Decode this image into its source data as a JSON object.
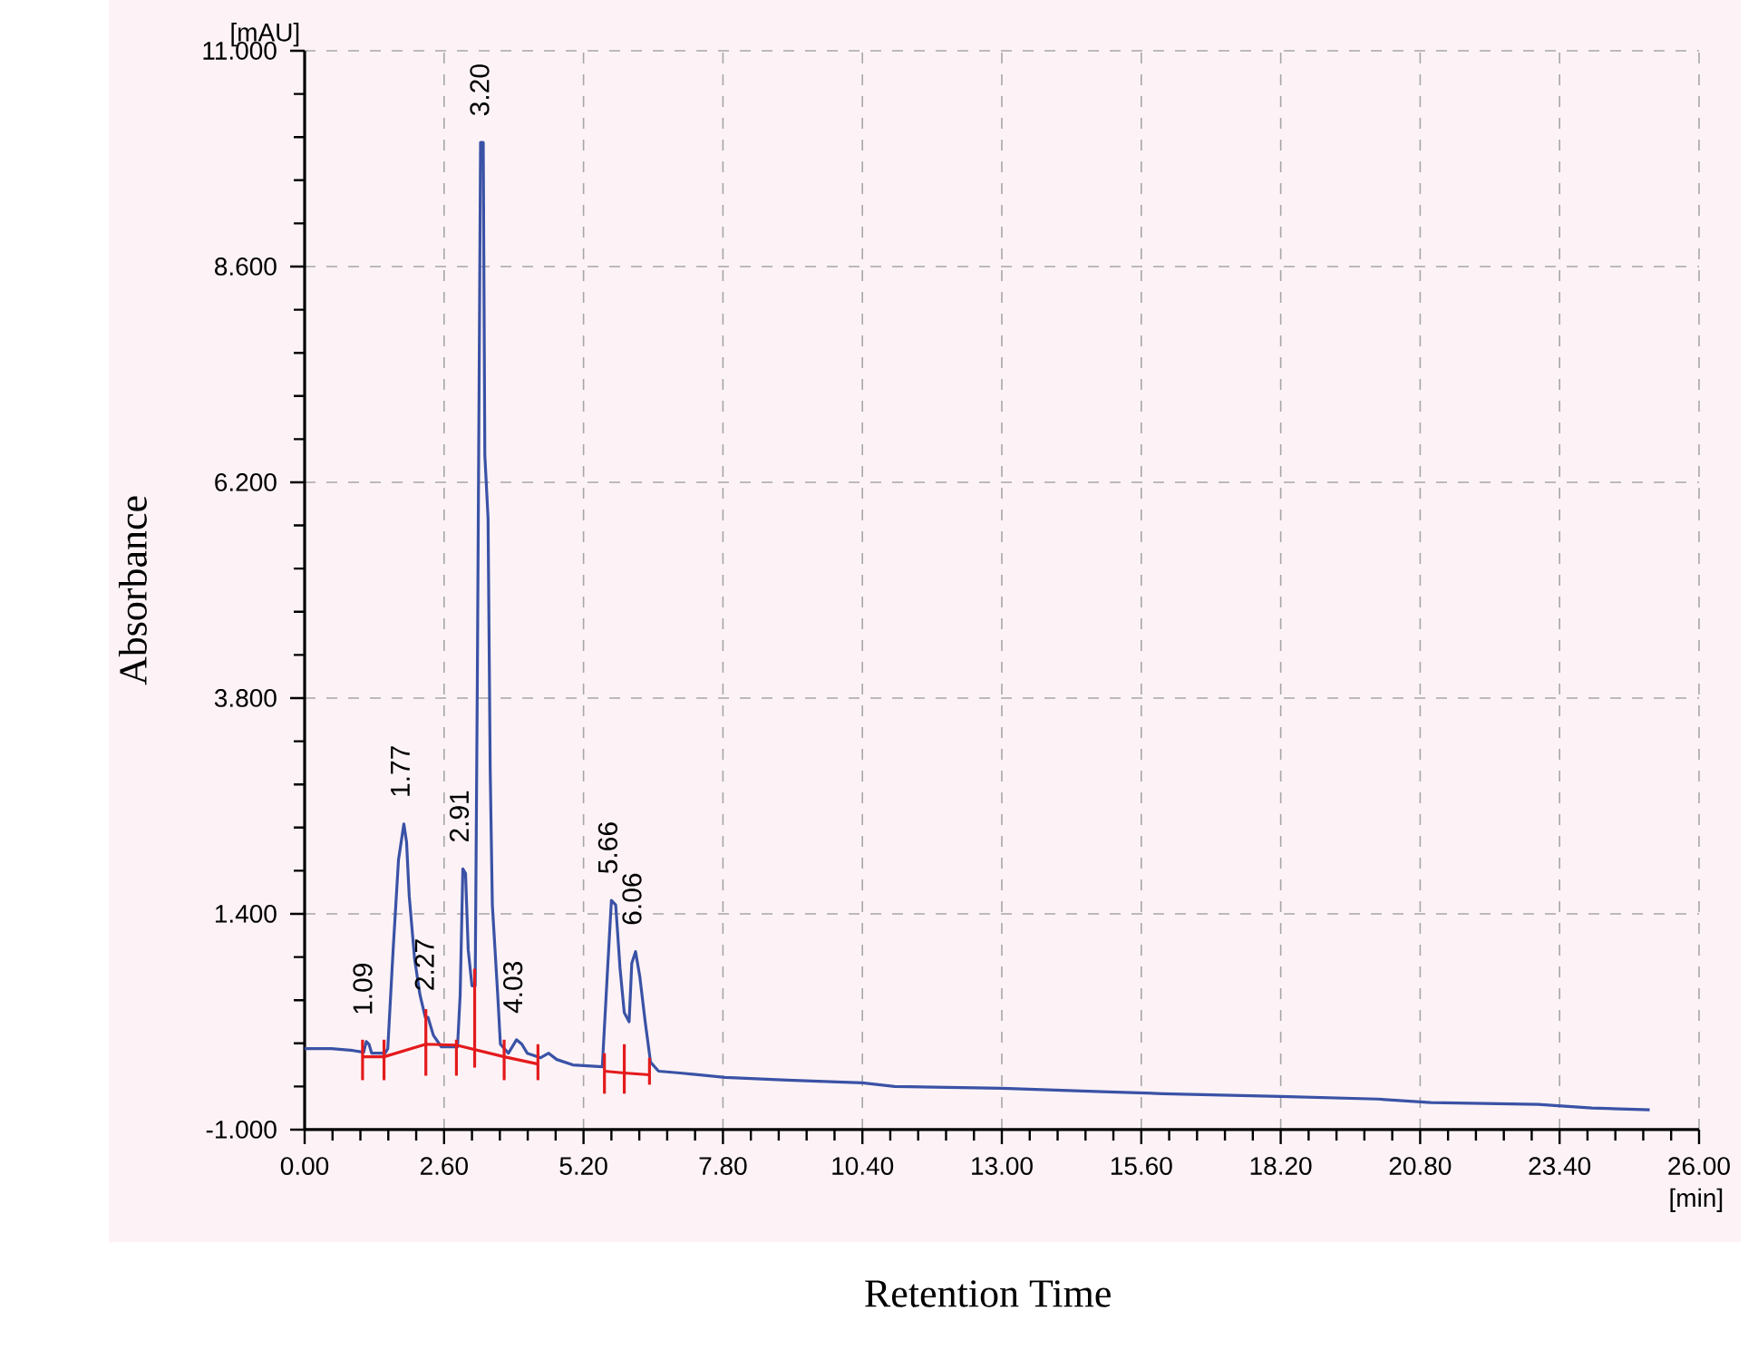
{
  "chart_data": {
    "type": "line",
    "xlabel": "Retention Time",
    "ylabel": "Absorbance",
    "xlim": [
      0,
      26
    ],
    "ylim": [
      -1,
      11
    ],
    "xticks": [
      {
        "value": 0,
        "label": "0.00"
      },
      {
        "value": 2.6,
        "label": "2.60"
      },
      {
        "value": 5.2,
        "label": "5.20"
      },
      {
        "value": 7.8,
        "label": "7.80"
      },
      {
        "value": 10.4,
        "label": "10.40"
      },
      {
        "value": 13,
        "label": "13.00"
      },
      {
        "value": 15.6,
        "label": "15.60"
      },
      {
        "value": 18.2,
        "label": "18.20"
      },
      {
        "value": 20.8,
        "label": "20.80"
      },
      {
        "value": 23.4,
        "label": "23.40"
      },
      {
        "value": 26,
        "label": "26.00"
      }
    ],
    "yticks": [
      {
        "value": -1,
        "label": "-1.000"
      },
      {
        "value": 1.4,
        "label": "1.400"
      },
      {
        "value": 3.8,
        "label": "3.800"
      },
      {
        "value": 6.2,
        "label": "6.200"
      },
      {
        "value": 8.6,
        "label": "8.600"
      },
      {
        "value": 11,
        "label": "11.000"
      }
    ],
    "grid": true,
    "series": [
      {
        "color": "#3a52a6",
        "x": [
          0,
          0.5,
          0.9,
          1.1,
          1.15,
          1.2,
          1.25,
          1.5,
          1.55,
          1.65,
          1.75,
          1.85,
          1.9,
          1.95,
          2.05,
          2.15,
          2.25,
          2.3,
          2.4,
          2.55,
          2.85,
          2.9,
          2.95,
          3.0,
          3.05,
          3.12,
          3.18,
          3.22,
          3.28,
          3.33,
          3.36,
          3.42,
          3.46,
          3.5,
          3.6,
          3.65,
          3.8,
          3.95,
          4.05,
          4.15,
          4.4,
          4.55,
          4.7,
          5.0,
          5.55,
          5.65,
          5.72,
          5.8,
          5.88,
          5.96,
          6.05,
          6.1,
          6.17,
          6.25,
          6.35,
          6.45,
          6.6,
          7.0,
          7.84,
          9,
          10.4,
          11,
          13,
          15,
          16,
          18.2,
          20,
          21,
          23,
          24,
          25.08
        ],
        "values": [
          -0.1,
          -0.1,
          -0.12,
          -0.14,
          -0.02,
          -0.05,
          -0.15,
          -0.15,
          -0.1,
          1.0,
          2.0,
          2.4,
          2.2,
          1.6,
          0.9,
          0.5,
          0.25,
          0.25,
          0.05,
          -0.08,
          -0.08,
          0.5,
          1.9,
          1.85,
          1.0,
          0.6,
          0.6,
          4.0,
          9.98,
          9.98,
          6.5,
          5.8,
          3.0,
          1.5,
          0.5,
          -0.05,
          -0.15,
          0.0,
          -0.05,
          -0.15,
          -0.2,
          -0.15,
          -0.22,
          -0.28,
          -0.3,
          0.8,
          1.55,
          1.5,
          0.8,
          0.3,
          0.2,
          0.85,
          0.98,
          0.7,
          0.2,
          -0.25,
          -0.35,
          -0.37,
          -0.42,
          -0.45,
          -0.48,
          -0.52,
          -0.54,
          -0.58,
          -0.6,
          -0.63,
          -0.66,
          -0.7,
          -0.72,
          -0.76,
          -0.78
        ]
      },
      {
        "color": "#e41a1c",
        "x": [
          1.08,
          1.48,
          2.26,
          2.83,
          3.72,
          4.35
        ],
        "values": [
          -0.19,
          -0.19,
          -0.05,
          -0.06,
          -0.19,
          -0.27
        ]
      },
      {
        "color": "#e41a1c",
        "x": [
          5.59,
          5.96,
          6.43
        ],
        "values": [
          -0.35,
          -0.37,
          -0.39
        ]
      },
      {
        "color": "#e41a1c",
        "x": [
          1.08,
          1.08
        ],
        "values": [
          -0.45,
          0.0
        ]
      },
      {
        "color": "#e41a1c",
        "x": [
          1.48,
          1.48
        ],
        "values": [
          -0.45,
          0.0
        ]
      },
      {
        "color": "#e41a1c",
        "x": [
          2.26,
          2.26
        ],
        "values": [
          -0.4,
          0.34
        ]
      },
      {
        "color": "#e41a1c",
        "x": [
          2.83,
          2.83
        ],
        "values": [
          -0.4,
          0.0
        ]
      },
      {
        "color": "#e41a1c",
        "x": [
          3.17,
          3.17
        ],
        "values": [
          -0.31,
          0.79
        ]
      },
      {
        "color": "#e41a1c",
        "x": [
          3.72,
          3.72
        ],
        "values": [
          -0.45,
          0.0
        ]
      },
      {
        "color": "#e41a1c",
        "x": [
          4.35,
          4.35
        ],
        "values": [
          -0.45,
          -0.05
        ]
      },
      {
        "color": "#e41a1c",
        "x": [
          5.59,
          5.59
        ],
        "values": [
          -0.6,
          -0.15
        ]
      },
      {
        "color": "#e41a1c",
        "x": [
          5.96,
          5.96
        ],
        "values": [
          -0.6,
          -0.05
        ]
      },
      {
        "color": "#e41a1c",
        "x": [
          6.43,
          6.43
        ],
        "values": [
          -0.5,
          -0.2
        ]
      }
    ],
    "annotations": [
      "[mAU]",
      "[min]",
      {
        "text": "1.09",
        "x": 1.15,
        "y": -0.02
      },
      {
        "text": "1.77",
        "x": 1.85,
        "y": 2.4
      },
      {
        "text": "2.27",
        "x": 2.3,
        "y": 0.25
      },
      {
        "text": "2.91",
        "x": 2.95,
        "y": 1.9
      },
      {
        "text": "3.20",
        "x": 3.33,
        "y": 9.98
      },
      {
        "text": "4.03",
        "x": 3.95,
        "y": 0.0
      },
      {
        "text": "5.66",
        "x": 5.72,
        "y": 1.55
      },
      {
        "text": "6.06",
        "x": 6.17,
        "y": 0.98
      }
    ]
  }
}
